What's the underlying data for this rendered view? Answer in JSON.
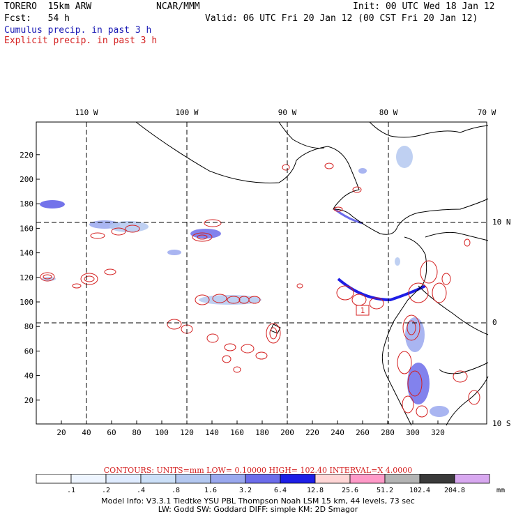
{
  "header": {
    "model": "TORERO  15km ARW",
    "org": "NCAR/MMM",
    "init": "Init: 00 UTC Wed 18 Jan 12",
    "fcst": "Fcst:   54 h",
    "valid": "Valid: 06 UTC Fri 20 Jan 12 (00 CST Fri 20 Jan 12)",
    "cumulus": "Cumulus precip. in past 3 h",
    "explicit": "Explicit precip. in past 3 h"
  },
  "axes": {
    "x_ticks": [
      "20",
      "40",
      "60",
      "80",
      "100",
      "120",
      "140",
      "160",
      "180",
      "200",
      "220",
      "240",
      "260",
      "280",
      "300",
      "320"
    ],
    "y_ticks": [
      "20",
      "40",
      "60",
      "80",
      "100",
      "120",
      "140",
      "160",
      "180",
      "200",
      "220"
    ],
    "lon_labels": [
      "110 W",
      "100 W",
      "90 W",
      "80 W",
      "70 W"
    ],
    "lat_labels": [
      "10 N",
      "0",
      "10 S"
    ]
  },
  "map_label": "1",
  "contours": {
    "text": "CONTOURS:  UNITS=mm  LOW= 0.10000     HIGH=  102.40     INTERVAL=X  4.0000"
  },
  "colorbar": {
    "labels": [
      ".1",
      ".2",
      ".4",
      ".8",
      "1.6",
      "3.2",
      "6.4",
      "12.8",
      "25.6",
      "51.2",
      "102.4",
      "204.8"
    ],
    "unit": "mm",
    "colors": [
      "#ffffff",
      "#eef5ff",
      "#e0ecff",
      "#cce0f8",
      "#b4c8f0",
      "#9aa8ee",
      "#6c6cea",
      "#1e1ee6",
      "#ffd6d6",
      "#ff9ac8",
      "#b4b4b4",
      "#3a3a3a",
      "#d8a8f0"
    ]
  },
  "footer": {
    "line1": "Model Info: V3.3.1    Tiedtke YSU PBL  Thompson    Noah LSM  15 km,   44 levels,   73 sec",
    "line2": "LW: Godd SW: Goddard DIFF: simple KM: 2D Smagor"
  }
}
